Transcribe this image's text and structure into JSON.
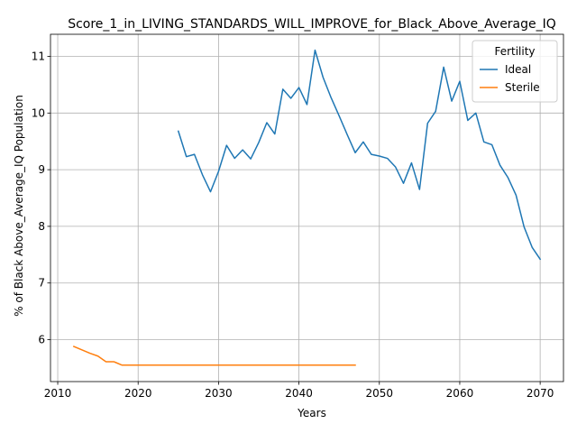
{
  "chart_data": {
    "type": "line",
    "title": "Score_1_in_LIVING_STANDARDS_WILL_IMPROVE_for_Black_Above_Average_IQ",
    "xlabel": "Years",
    "ylabel": "% of Black Above_Average_IQ Population",
    "xlim": [
      2009.1,
      2072.9
    ],
    "ylim": [
      5.26,
      11.39
    ],
    "xticks": [
      2010,
      2020,
      2030,
      2040,
      2050,
      2060,
      2070
    ],
    "yticks": [
      6,
      7,
      8,
      9,
      10,
      11
    ],
    "grid": true,
    "legend": {
      "title": "Fertility",
      "placement": "top-right"
    },
    "series": [
      {
        "name": "Ideal",
        "color": "#1f77b4",
        "x": [
          2025,
          2026,
          2027,
          2028,
          2029,
          2030,
          2031,
          2032,
          2033,
          2034,
          2035,
          2036,
          2037,
          2038,
          2039,
          2040,
          2041,
          2042,
          2043,
          2044,
          2045,
          2046,
          2047,
          2048,
          2049,
          2050,
          2051,
          2052,
          2053,
          2054,
          2055,
          2056,
          2057,
          2058,
          2059,
          2060,
          2061,
          2062,
          2063,
          2064,
          2065,
          2066,
          2067,
          2068,
          2069,
          2070
        ],
        "y": [
          9.68,
          9.23,
          9.27,
          8.91,
          8.61,
          8.97,
          9.43,
          9.2,
          9.35,
          9.19,
          9.48,
          9.83,
          9.63,
          10.42,
          10.26,
          10.45,
          10.15,
          11.11,
          10.63,
          10.27,
          9.95,
          9.62,
          9.3,
          9.49,
          9.27,
          9.24,
          9.2,
          9.05,
          8.76,
          9.12,
          8.65,
          9.82,
          10.03,
          10.81,
          10.21,
          10.56,
          9.87,
          10.0,
          9.49,
          9.44,
          9.08,
          8.86,
          8.55,
          7.99,
          7.63,
          7.42
        ]
      },
      {
        "name": "Sterile",
        "color": "#ff7f0e",
        "x": [
          2012,
          2013,
          2014,
          2015,
          2016,
          2017,
          2018,
          2019,
          2020,
          2021,
          2022,
          2023,
          2024,
          2025,
          2026,
          2027,
          2028,
          2029,
          2030,
          2031,
          2032,
          2033,
          2034,
          2035,
          2036,
          2037,
          2038,
          2039,
          2040,
          2041,
          2042,
          2043,
          2044,
          2045,
          2046,
          2047
        ],
        "y": [
          5.88,
          5.82,
          5.76,
          5.71,
          5.61,
          5.61,
          5.55,
          5.55,
          5.55,
          5.55,
          5.55,
          5.55,
          5.55,
          5.55,
          5.55,
          5.55,
          5.55,
          5.55,
          5.55,
          5.55,
          5.55,
          5.55,
          5.55,
          5.55,
          5.55,
          5.55,
          5.55,
          5.55,
          5.55,
          5.55,
          5.55,
          5.55,
          5.55,
          5.55,
          5.55,
          5.55
        ]
      }
    ]
  }
}
